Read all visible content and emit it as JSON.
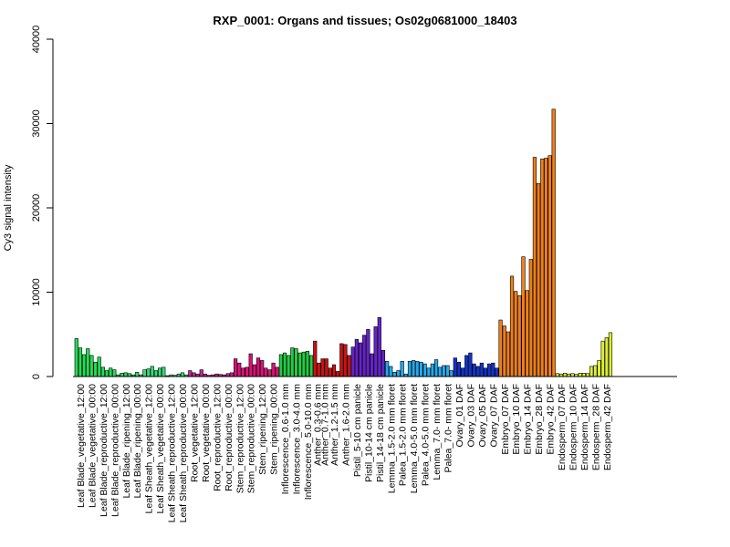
{
  "chart_data": {
    "type": "bar",
    "title": "RXP_0001: Organs and tissues; Os02g0681000_18403",
    "ylabel": "Cy3 signal intensity",
    "xlabel": "",
    "ylim": [
      0,
      40000
    ],
    "yticks": [
      0,
      10000,
      20000,
      30000,
      40000
    ],
    "grid": false,
    "legend": "none",
    "groups": [
      {
        "label": "Leaf Blade_vegetative_12:00",
        "color": "#22dd55",
        "values": [
          4500,
          3400,
          2600
        ]
      },
      {
        "label": "Leaf Blade_vegetative_00:00",
        "color": "#22dd55",
        "values": [
          3300,
          2500,
          1700
        ]
      },
      {
        "label": "Leaf Blade_reproductive_12:00",
        "color": "#22dd55",
        "values": [
          2300,
          1100,
          700
        ]
      },
      {
        "label": "Leaf Blade_reproductive_00:00",
        "color": "#22dd55",
        "values": [
          1000,
          800,
          200
        ]
      },
      {
        "label": "Leaf Blade_ripening_12:00",
        "color": "#22dd55",
        "values": [
          400,
          450,
          350
        ]
      },
      {
        "label": "Leaf Blade_ripening_00:00",
        "color": "#22dd55",
        "values": [
          200,
          500,
          200
        ]
      },
      {
        "label": "Leaf Sheath_vegetative_12:00",
        "color": "#33dd77",
        "values": [
          800,
          900,
          1200
        ]
      },
      {
        "label": "Leaf Sheath_vegetative_00:00",
        "color": "#33dd77",
        "values": [
          700,
          1000,
          1100
        ]
      },
      {
        "label": "Leaf Sheath_reproductive_12:00",
        "color": "#33dd77",
        "values": [
          100,
          200,
          150
        ]
      },
      {
        "label": "Leaf Sheath_reproductive_00:00",
        "color": "#33dd77",
        "values": [
          300,
          450,
          200
        ]
      },
      {
        "label": "Root_vegetative_12:00",
        "color": "#cc2299",
        "values": [
          700,
          450,
          300
        ]
      },
      {
        "label": "Root_vegetative_00:00",
        "color": "#cc2299",
        "values": [
          800,
          300,
          150
        ]
      },
      {
        "label": "Root_reproductive_12:00",
        "color": "#cc2299",
        "values": [
          200,
          300,
          250
        ]
      },
      {
        "label": "Root_reproductive_00:00",
        "color": "#cc2299",
        "values": [
          200,
          350,
          450
        ]
      },
      {
        "label": "Stem_reproductive_12:00",
        "color": "#dd1177",
        "values": [
          2100,
          1600,
          1000
        ]
      },
      {
        "label": "Stem_reproductive_00:00",
        "color": "#dd1177",
        "values": [
          1100,
          2700,
          1400
        ]
      },
      {
        "label": "Stem_ripening_12:00",
        "color": "#dd1177",
        "values": [
          2200,
          1900,
          1000
        ]
      },
      {
        "label": "Stem_ripening_00:00",
        "color": "#dd1177",
        "values": [
          800,
          1600,
          1100
        ]
      },
      {
        "label": "Inflorescence_0.6-1.0 mm",
        "color": "#22cc44",
        "values": [
          2600,
          2800,
          2500
        ]
      },
      {
        "label": "Inflorescence_3.0-4.0 mm",
        "color": "#22cc44",
        "values": [
          3400,
          3300,
          2800
        ]
      },
      {
        "label": "Inflorescence_5.0-10.0 mm",
        "color": "#22cc44",
        "values": [
          2900,
          3000,
          2500
        ]
      },
      {
        "label": "Anther_0.3-0.6 mm",
        "color": "#cc1111",
        "values": [
          4200,
          1600
        ]
      },
      {
        "label": "Anther_0.7-1.0 mm",
        "color": "#cc1111",
        "values": [
          2100,
          2100
        ]
      },
      {
        "label": "Anther_1.2-1.5 mm",
        "color": "#cc1111",
        "values": [
          1000,
          1400,
          600
        ]
      },
      {
        "label": "Anther_1.6-2.0 mm",
        "color": "#cc1111",
        "values": [
          3900,
          3800,
          2500
        ]
      },
      {
        "label": "Pistil_5-10 cm panicle",
        "color": "#6622cc",
        "values": [
          3500,
          4400,
          4000
        ]
      },
      {
        "label": "Pistil_10-14 cm panicle",
        "color": "#6622cc",
        "values": [
          4900,
          5600,
          2700
        ]
      },
      {
        "label": "Pistil_14-18 cm panicle",
        "color": "#6622cc",
        "values": [
          5900,
          7000,
          3100
        ]
      },
      {
        "label": "Lemma_1.5-2.0 mm floret",
        "color": "#22aaee",
        "values": [
          1800,
          1200,
          500
        ]
      },
      {
        "label": "Palea_1.5-2.0 mm floret",
        "color": "#22aaee",
        "values": [
          700,
          1800,
          300
        ]
      },
      {
        "label": "Lemma_4.0-5.0 mm floret",
        "color": "#22aaee",
        "values": [
          1800,
          1900,
          1800
        ]
      },
      {
        "label": "Palea_4.0-5.0 mm floret",
        "color": "#22aaee",
        "values": [
          1700,
          1500,
          1000
        ]
      },
      {
        "label": "Lemma_7.0- mm floret",
        "color": "#22aaee",
        "values": [
          1500,
          2000,
          1100
        ]
      },
      {
        "label": "Palea_7.0- mm floret",
        "color": "#22aaee",
        "values": [
          1300,
          1300,
          700
        ]
      },
      {
        "label": "Ovary_01 DAF",
        "color": "#1133cc",
        "values": [
          2200,
          1700,
          1000
        ]
      },
      {
        "label": "Ovary_03 DAF",
        "color": "#1133cc",
        "values": [
          2500,
          2800,
          1500
        ]
      },
      {
        "label": "Ovary_05 DAF",
        "color": "#1133cc",
        "values": [
          1200,
          1600,
          1000
        ]
      },
      {
        "label": "Ovary_07 DAF",
        "color": "#1133cc",
        "values": [
          1500,
          1600,
          1000
        ]
      },
      {
        "label": "Embryo_07 DAF",
        "color": "#f07f1a",
        "values": [
          6700,
          6000,
          5300
        ]
      },
      {
        "label": "Embryo_10 DAF",
        "color": "#f07f1a",
        "values": [
          11900,
          10100,
          9600
        ]
      },
      {
        "label": "Embryo_14 DAF",
        "color": "#f07f1a",
        "values": [
          14200,
          10200,
          13900
        ]
      },
      {
        "label": "Embryo_28 DAF",
        "color": "#f07f1a",
        "values": [
          26000,
          22900,
          25800
        ]
      },
      {
        "label": "Embryo_42 DAF",
        "color": "#f07f1a",
        "values": [
          25900,
          26200,
          31700
        ]
      },
      {
        "label": "Endosperm_07 DAF",
        "color": "#ddee33",
        "values": [
          350,
          300,
          400
        ]
      },
      {
        "label": "Endosperm_10 DAF",
        "color": "#ddee33",
        "values": [
          300,
          350,
          250
        ]
      },
      {
        "label": "Endosperm_14 DAF",
        "color": "#ddee33",
        "values": [
          400,
          400,
          350
        ]
      },
      {
        "label": "Endosperm_28 DAF",
        "color": "#ddee33",
        "values": [
          1200,
          1300,
          1900
        ]
      },
      {
        "label": "Endosperm_42 DAF",
        "color": "#ddee33",
        "values": [
          4200,
          4600,
          5200
        ]
      }
    ]
  }
}
